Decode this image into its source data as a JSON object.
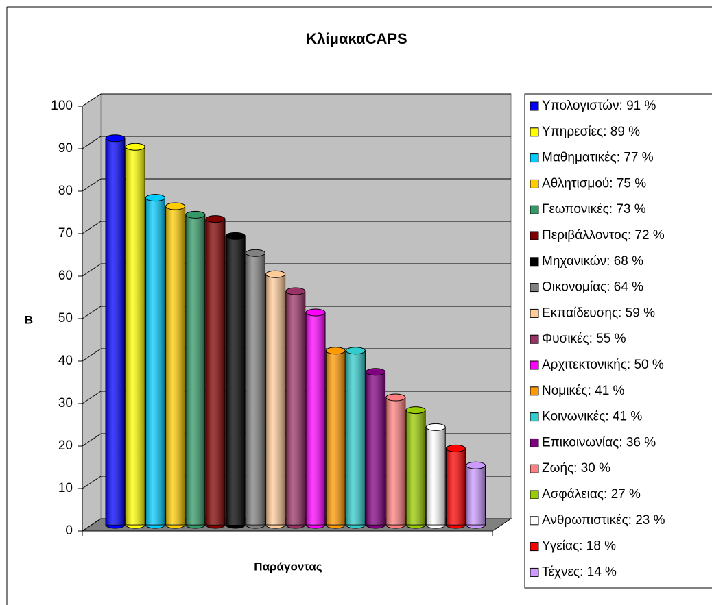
{
  "chart_data": {
    "type": "bar",
    "title": "ΚλίμακαCAPS",
    "y_label": "B",
    "x_label": "Παράγοντας",
    "ylim": [
      0,
      100
    ],
    "yticks": [
      0,
      10,
      20,
      30,
      40,
      50,
      60,
      70,
      80,
      90,
      100
    ],
    "grid": true,
    "legend": "right",
    "series": [
      {
        "name": "Υπολογιστών: 91 %",
        "color": "#0000ff",
        "values": [
          91
        ]
      },
      {
        "name": "Υπηρεσίες: 89 %",
        "color": "#ffff00",
        "values": [
          89
        ]
      },
      {
        "name": "Μαθηματικές: 77 %",
        "color": "#00ccff",
        "values": [
          77
        ]
      },
      {
        "name": "Αθλητισμού: 75 %",
        "color": "#ffcc00",
        "values": [
          75
        ]
      },
      {
        "name": "Γεωπονικές: 73 %",
        "color": "#339966",
        "values": [
          73
        ]
      },
      {
        "name": "Περιβάλλοντος: 72 %",
        "color": "#800000",
        "values": [
          72
        ]
      },
      {
        "name": "Μηχανικών: 68 %",
        "color": "#000000",
        "values": [
          68
        ]
      },
      {
        "name": "Οικονομίας: 64 %",
        "color": "#808080",
        "values": [
          64
        ]
      },
      {
        "name": "Εκπαίδευσης: 59 %",
        "color": "#ffcc99",
        "values": [
          59
        ]
      },
      {
        "name": "Φυσικές: 55 %",
        "color": "#993366",
        "values": [
          55
        ]
      },
      {
        "name": "Αρχιτεκτονικής: 50 %",
        "color": "#ff00ff",
        "values": [
          50
        ]
      },
      {
        "name": "Νομικές: 41 %",
        "color": "#ff9900",
        "values": [
          41
        ]
      },
      {
        "name": "Κοινωνικές: 41 %",
        "color": "#33cccc",
        "values": [
          41
        ]
      },
      {
        "name": "Επικοινωνίας: 36 %",
        "color": "#800080",
        "values": [
          36
        ]
      },
      {
        "name": "Ζωής: 30 %",
        "color": "#ff8080",
        "values": [
          30
        ]
      },
      {
        "name": "Ασφάλειας: 27 %",
        "color": "#99cc00",
        "values": [
          27
        ]
      },
      {
        "name": "Ανθρωπιστικές: 23 %",
        "color": "#ffffff",
        "values": [
          23
        ]
      },
      {
        "name": "Υγείας: 18 %",
        "color": "#ff0000",
        "values": [
          18
        ]
      },
      {
        "name": "Τέχνες: 14 %",
        "color": "#cc99ff",
        "values": [
          14
        ]
      }
    ]
  }
}
